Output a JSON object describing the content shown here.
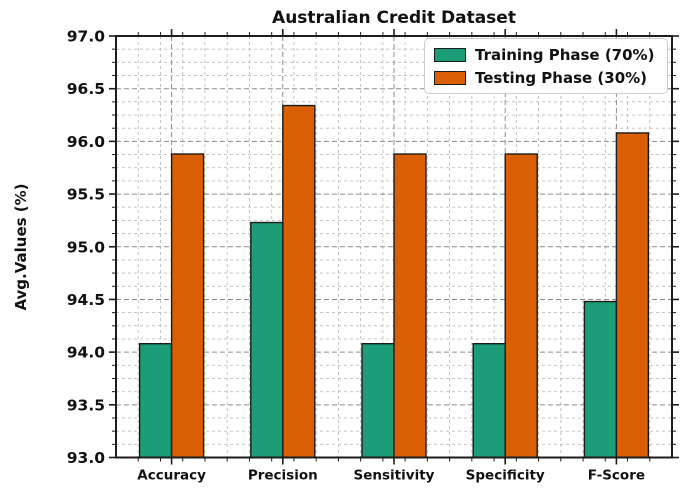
{
  "chart_data": {
    "type": "bar",
    "title": "Australian Credit Dataset",
    "ylabel": "Avg.Values (%)",
    "xlabel": "",
    "categories": [
      "Accuracy",
      "Precision",
      "Sensitivity",
      "Specificity",
      "F-Score"
    ],
    "series": [
      {
        "name": "Training Phase (70%)",
        "color": "#1b9e77",
        "values": [
          94.08,
          95.23,
          94.08,
          94.08,
          94.48
        ]
      },
      {
        "name": "Testing Phase (30%)",
        "color": "#d95f02",
        "values": [
          95.88,
          96.34,
          95.88,
          95.88,
          96.08
        ]
      }
    ],
    "ylim": [
      93.0,
      97.0
    ],
    "ytick_step": 0.5,
    "ytick_decimals": 1,
    "y_minor_step": 0.125,
    "x_minor_per_slot": 5,
    "grid": "dashed-major-and-minor-both-axes",
    "legend_position": "upper-right",
    "bar_edge_color": "#1a1a1a",
    "spine_color": "#1c1c1c",
    "major_grid_color": "#8a8a8a",
    "minor_grid_color": "#bdbdbd",
    "tick_label_color": "#111111"
  }
}
